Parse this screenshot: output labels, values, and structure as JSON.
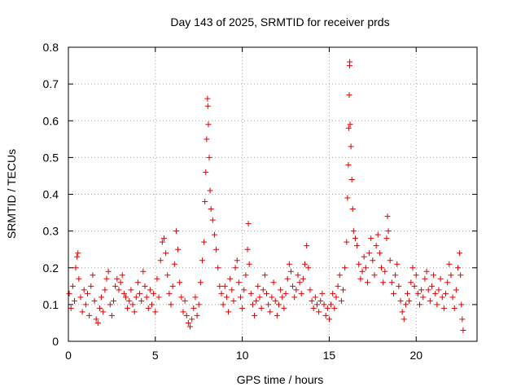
{
  "chart_data": {
    "type": "scatter",
    "title": "Day 143 of 2025, SRMTID for receiver prds",
    "xlabel": "GPS time / hours",
    "ylabel": "SRMTID / TECUs",
    "xlim": [
      0,
      23.5
    ],
    "ylim": [
      0,
      0.8
    ],
    "xticks": [
      0,
      5,
      10,
      15,
      20
    ],
    "yticks": [
      0,
      0.1,
      0.2,
      0.3,
      0.4,
      0.5,
      0.6,
      0.7,
      0.8
    ],
    "xtick_labels": [
      "0",
      "5",
      "10",
      "15",
      "20"
    ],
    "ytick_labels": [
      "0",
      "0.1",
      "0.2",
      "0.3",
      "0.4",
      "0.5",
      "0.6",
      "0.7",
      "0.8"
    ],
    "grid": true,
    "marker": "+",
    "color": "#e00000",
    "series": [
      {
        "name": "SRMTID",
        "points": [
          [
            0.05,
            0.13
          ],
          [
            0.15,
            0.09
          ],
          [
            0.25,
            0.15
          ],
          [
            0.35,
            0.11
          ],
          [
            0.42,
            0.2
          ],
          [
            0.5,
            0.23
          ],
          [
            0.55,
            0.24
          ],
          [
            0.6,
            0.17
          ],
          [
            0.7,
            0.12
          ],
          [
            0.8,
            0.08
          ],
          [
            0.9,
            0.14
          ],
          [
            1.0,
            0.1
          ],
          [
            1.1,
            0.13
          ],
          [
            1.2,
            0.07
          ],
          [
            1.3,
            0.15
          ],
          [
            1.4,
            0.18
          ],
          [
            1.5,
            0.11
          ],
          [
            1.6,
            0.06
          ],
          [
            1.7,
            0.05
          ],
          [
            1.8,
            0.09
          ],
          [
            1.9,
            0.12
          ],
          [
            2.0,
            0.08
          ],
          [
            2.1,
            0.14
          ],
          [
            2.2,
            0.17
          ],
          [
            2.3,
            0.19
          ],
          [
            2.4,
            0.1
          ],
          [
            2.5,
            0.07
          ],
          [
            2.6,
            0.11
          ],
          [
            2.7,
            0.15
          ],
          [
            2.8,
            0.17
          ],
          [
            2.9,
            0.14
          ],
          [
            3.0,
            0.16
          ],
          [
            3.1,
            0.18
          ],
          [
            3.2,
            0.13
          ],
          [
            3.3,
            0.12
          ],
          [
            3.4,
            0.09
          ],
          [
            3.5,
            0.11
          ],
          [
            3.6,
            0.14
          ],
          [
            3.7,
            0.1
          ],
          [
            3.8,
            0.08
          ],
          [
            3.9,
            0.12
          ],
          [
            4.0,
            0.16
          ],
          [
            4.1,
            0.13
          ],
          [
            4.2,
            0.11
          ],
          [
            4.3,
            0.19
          ],
          [
            4.4,
            0.15
          ],
          [
            4.5,
            0.12
          ],
          [
            4.6,
            0.09
          ],
          [
            4.7,
            0.14
          ],
          [
            4.8,
            0.1
          ],
          [
            4.9,
            0.13
          ],
          [
            5.0,
            0.08
          ],
          [
            5.1,
            0.17
          ],
          [
            5.2,
            0.12
          ],
          [
            5.3,
            0.22
          ],
          [
            5.4,
            0.27
          ],
          [
            5.5,
            0.28
          ],
          [
            5.6,
            0.24
          ],
          [
            5.7,
            0.18
          ],
          [
            5.8,
            0.13
          ],
          [
            5.9,
            0.1
          ],
          [
            6.0,
            0.15
          ],
          [
            6.1,
            0.21
          ],
          [
            6.2,
            0.3
          ],
          [
            6.3,
            0.25
          ],
          [
            6.4,
            0.16
          ],
          [
            6.5,
            0.12
          ],
          [
            6.6,
            0.08
          ],
          [
            6.7,
            0.11
          ],
          [
            6.8,
            0.07
          ],
          [
            6.9,
            0.05
          ],
          [
            7.0,
            0.04
          ],
          [
            7.1,
            0.06
          ],
          [
            7.2,
            0.09
          ],
          [
            7.3,
            0.12
          ],
          [
            7.4,
            0.07
          ],
          [
            7.5,
            0.1
          ],
          [
            7.6,
            0.16
          ],
          [
            7.7,
            0.22
          ],
          [
            7.8,
            0.27
          ],
          [
            7.85,
            0.38
          ],
          [
            7.9,
            0.46
          ],
          [
            7.95,
            0.55
          ],
          [
            8.0,
            0.66
          ],
          [
            8.02,
            0.64
          ],
          [
            8.05,
            0.59
          ],
          [
            8.1,
            0.5
          ],
          [
            8.15,
            0.41
          ],
          [
            8.2,
            0.36
          ],
          [
            8.3,
            0.33
          ],
          [
            8.4,
            0.29
          ],
          [
            8.5,
            0.25
          ],
          [
            8.6,
            0.2
          ],
          [
            8.7,
            0.15
          ],
          [
            8.8,
            0.13
          ],
          [
            8.9,
            0.1
          ],
          [
            9.0,
            0.15
          ],
          [
            9.1,
            0.12
          ],
          [
            9.2,
            0.08
          ],
          [
            9.3,
            0.17
          ],
          [
            9.4,
            0.14
          ],
          [
            9.5,
            0.11
          ],
          [
            9.6,
            0.2
          ],
          [
            9.7,
            0.22
          ],
          [
            9.8,
            0.16
          ],
          [
            9.9,
            0.12
          ],
          [
            10.0,
            0.09
          ],
          [
            10.1,
            0.14
          ],
          [
            10.2,
            0.18
          ],
          [
            10.3,
            0.25
          ],
          [
            10.35,
            0.32
          ],
          [
            10.4,
            0.21
          ],
          [
            10.5,
            0.13
          ],
          [
            10.6,
            0.1
          ],
          [
            10.7,
            0.07
          ],
          [
            10.8,
            0.11
          ],
          [
            10.9,
            0.15
          ],
          [
            11.0,
            0.12
          ],
          [
            11.1,
            0.09
          ],
          [
            11.2,
            0.14
          ],
          [
            11.3,
            0.18
          ],
          [
            11.4,
            0.13
          ],
          [
            11.5,
            0.1
          ],
          [
            11.6,
            0.08
          ],
          [
            11.7,
            0.12
          ],
          [
            11.8,
            0.16
          ],
          [
            11.9,
            0.11
          ],
          [
            12.0,
            0.07
          ],
          [
            12.1,
            0.1
          ],
          [
            12.2,
            0.14
          ],
          [
            12.3,
            0.12
          ],
          [
            12.4,
            0.09
          ],
          [
            12.5,
            0.13
          ],
          [
            12.6,
            0.17
          ],
          [
            12.7,
            0.21
          ],
          [
            12.8,
            0.19
          ],
          [
            12.9,
            0.15
          ],
          [
            13.0,
            0.12
          ],
          [
            13.1,
            0.14
          ],
          [
            13.2,
            0.18
          ],
          [
            13.3,
            0.16
          ],
          [
            13.4,
            0.13
          ],
          [
            13.5,
            0.17
          ],
          [
            13.6,
            0.21
          ],
          [
            13.7,
            0.26
          ],
          [
            13.8,
            0.2
          ],
          [
            13.9,
            0.14
          ],
          [
            14.0,
            0.11
          ],
          [
            14.1,
            0.09
          ],
          [
            14.2,
            0.12
          ],
          [
            14.3,
            0.1
          ],
          [
            14.4,
            0.08
          ],
          [
            14.5,
            0.11
          ],
          [
            14.6,
            0.13
          ],
          [
            14.7,
            0.1
          ],
          [
            14.8,
            0.07
          ],
          [
            14.9,
            0.09
          ],
          [
            15.0,
            0.06
          ],
          [
            15.1,
            0.1
          ],
          [
            15.2,
            0.13
          ],
          [
            15.3,
            0.09
          ],
          [
            15.4,
            0.12
          ],
          [
            15.5,
            0.15
          ],
          [
            15.6,
            0.18
          ],
          [
            15.7,
            0.11
          ],
          [
            15.8,
            0.14
          ],
          [
            15.9,
            0.2
          ],
          [
            16.0,
            0.27
          ],
          [
            16.05,
            0.39
          ],
          [
            16.1,
            0.48
          ],
          [
            16.12,
            0.58
          ],
          [
            16.15,
            0.67
          ],
          [
            16.17,
            0.75
          ],
          [
            16.18,
            0.76
          ],
          [
            16.2,
            0.59
          ],
          [
            16.25,
            0.53
          ],
          [
            16.3,
            0.44
          ],
          [
            16.35,
            0.36
          ],
          [
            16.4,
            0.3
          ],
          [
            16.5,
            0.28
          ],
          [
            16.6,
            0.26
          ],
          [
            16.7,
            0.21
          ],
          [
            16.8,
            0.17
          ],
          [
            16.9,
            0.19
          ],
          [
            17.0,
            0.23
          ],
          [
            17.1,
            0.2
          ],
          [
            17.2,
            0.16
          ],
          [
            17.3,
            0.24
          ],
          [
            17.4,
            0.28
          ],
          [
            17.5,
            0.22
          ],
          [
            17.6,
            0.18
          ],
          [
            17.7,
            0.26
          ],
          [
            17.8,
            0.29
          ],
          [
            17.9,
            0.24
          ],
          [
            18.0,
            0.2
          ],
          [
            18.1,
            0.16
          ],
          [
            18.2,
            0.19
          ],
          [
            18.3,
            0.28
          ],
          [
            18.35,
            0.34
          ],
          [
            18.4,
            0.3
          ],
          [
            18.5,
            0.22
          ],
          [
            18.6,
            0.16
          ],
          [
            18.7,
            0.13
          ],
          [
            18.8,
            0.18
          ],
          [
            18.9,
            0.21
          ],
          [
            19.0,
            0.15
          ],
          [
            19.1,
            0.11
          ],
          [
            19.2,
            0.08
          ],
          [
            19.3,
            0.06
          ],
          [
            19.4,
            0.1
          ],
          [
            19.5,
            0.13
          ],
          [
            19.6,
            0.11
          ],
          [
            19.7,
            0.16
          ],
          [
            19.8,
            0.2
          ],
          [
            19.9,
            0.15
          ],
          [
            20.0,
            0.18
          ],
          [
            20.1,
            0.13
          ],
          [
            20.2,
            0.1
          ],
          [
            20.3,
            0.14
          ],
          [
            20.4,
            0.12
          ],
          [
            20.5,
            0.17
          ],
          [
            20.6,
            0.19
          ],
          [
            20.7,
            0.14
          ],
          [
            20.8,
            0.11
          ],
          [
            20.9,
            0.15
          ],
          [
            21.0,
            0.18
          ],
          [
            21.1,
            0.13
          ],
          [
            21.2,
            0.1
          ],
          [
            21.3,
            0.14
          ],
          [
            21.4,
            0.17
          ],
          [
            21.5,
            0.12
          ],
          [
            21.6,
            0.09
          ],
          [
            21.7,
            0.13
          ],
          [
            21.8,
            0.16
          ],
          [
            21.9,
            0.21
          ],
          [
            22.0,
            0.18
          ],
          [
            22.1,
            0.12
          ],
          [
            22.2,
            0.09
          ],
          [
            22.3,
            0.14
          ],
          [
            22.4,
            0.2
          ],
          [
            22.5,
            0.24
          ],
          [
            22.55,
            0.18
          ],
          [
            22.6,
            0.1
          ],
          [
            22.65,
            0.06
          ],
          [
            22.7,
            0.03
          ]
        ]
      }
    ]
  }
}
